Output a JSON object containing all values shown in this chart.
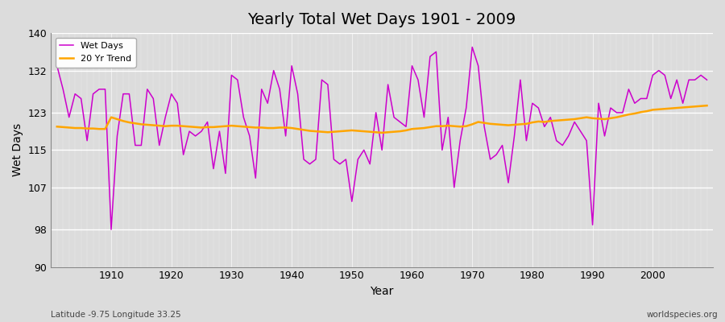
{
  "title": "Yearly Total Wet Days 1901 - 2009",
  "xlabel": "Year",
  "ylabel": "Wet Days",
  "subtitle_left": "Latitude -9.75 Longitude 33.25",
  "subtitle_right": "worldspecies.org",
  "ylim": [
    90,
    140
  ],
  "yticks": [
    90,
    98,
    107,
    115,
    123,
    132,
    140
  ],
  "fig_bg_color": "#dcdcdc",
  "plot_bg_color": "#dcdcdc",
  "line_color": "#cc00cc",
  "trend_color": "#ffa500",
  "years": [
    1901,
    1902,
    1903,
    1904,
    1905,
    1906,
    1907,
    1908,
    1909,
    1910,
    1911,
    1912,
    1913,
    1914,
    1915,
    1916,
    1917,
    1918,
    1919,
    1920,
    1921,
    1922,
    1923,
    1924,
    1925,
    1926,
    1927,
    1928,
    1929,
    1930,
    1931,
    1932,
    1933,
    1934,
    1935,
    1936,
    1937,
    1938,
    1939,
    1940,
    1941,
    1942,
    1943,
    1944,
    1945,
    1946,
    1947,
    1948,
    1949,
    1950,
    1951,
    1952,
    1953,
    1954,
    1955,
    1956,
    1957,
    1958,
    1959,
    1960,
    1961,
    1962,
    1963,
    1964,
    1965,
    1966,
    1967,
    1968,
    1969,
    1970,
    1971,
    1972,
    1973,
    1974,
    1975,
    1976,
    1977,
    1978,
    1979,
    1980,
    1981,
    1982,
    1983,
    1984,
    1985,
    1986,
    1987,
    1988,
    1989,
    1990,
    1991,
    1992,
    1993,
    1994,
    1995,
    1996,
    1997,
    1998,
    1999,
    2000,
    2001,
    2002,
    2003,
    2004,
    2005,
    2006,
    2007,
    2008,
    2009
  ],
  "wet_days": [
    133,
    128,
    122,
    127,
    126,
    117,
    127,
    128,
    128,
    98,
    118,
    127,
    127,
    116,
    116,
    128,
    126,
    116,
    122,
    127,
    125,
    114,
    119,
    118,
    119,
    121,
    111,
    119,
    110,
    131,
    130,
    122,
    118,
    109,
    128,
    125,
    132,
    128,
    118,
    133,
    127,
    113,
    112,
    113,
    130,
    129,
    113,
    112,
    113,
    104,
    113,
    115,
    112,
    123,
    115,
    129,
    122,
    121,
    120,
    133,
    130,
    122,
    135,
    136,
    115,
    122,
    107,
    117,
    124,
    137,
    133,
    120,
    113,
    114,
    116,
    108,
    118,
    130,
    117,
    125,
    124,
    120,
    122,
    117,
    116,
    118,
    121,
    119,
    117,
    99,
    125,
    118,
    124,
    123,
    123,
    128,
    125,
    126,
    126,
    131,
    132,
    131,
    126,
    130,
    125,
    130,
    130,
    131,
    130
  ],
  "trend": [
    120.0,
    119.9,
    119.8,
    119.7,
    119.7,
    119.6,
    119.6,
    119.5,
    119.5,
    122.0,
    121.6,
    121.2,
    120.9,
    120.7,
    120.5,
    120.4,
    120.3,
    120.2,
    120.1,
    120.2,
    120.2,
    120.1,
    120.0,
    119.9,
    119.8,
    119.9,
    119.9,
    120.0,
    120.1,
    120.2,
    120.1,
    120.0,
    119.9,
    119.8,
    119.8,
    119.7,
    119.7,
    119.8,
    119.8,
    119.7,
    119.5,
    119.3,
    119.1,
    119.0,
    118.9,
    118.8,
    118.9,
    119.0,
    119.1,
    119.2,
    119.1,
    119.0,
    118.9,
    118.8,
    118.7,
    118.8,
    118.9,
    119.0,
    119.2,
    119.5,
    119.6,
    119.7,
    119.9,
    120.1,
    120.1,
    120.2,
    120.1,
    120.0,
    120.1,
    120.5,
    121.0,
    120.8,
    120.6,
    120.5,
    120.4,
    120.3,
    120.4,
    120.5,
    120.6,
    120.9,
    121.1,
    121.0,
    121.2,
    121.3,
    121.4,
    121.5,
    121.6,
    121.8,
    122.0,
    121.8,
    121.7,
    121.6,
    121.8,
    122.0,
    122.3,
    122.6,
    122.8,
    123.1,
    123.3,
    123.6,
    123.7,
    123.8,
    123.9,
    124.0,
    124.1,
    124.2,
    124.3,
    124.4,
    124.5
  ]
}
